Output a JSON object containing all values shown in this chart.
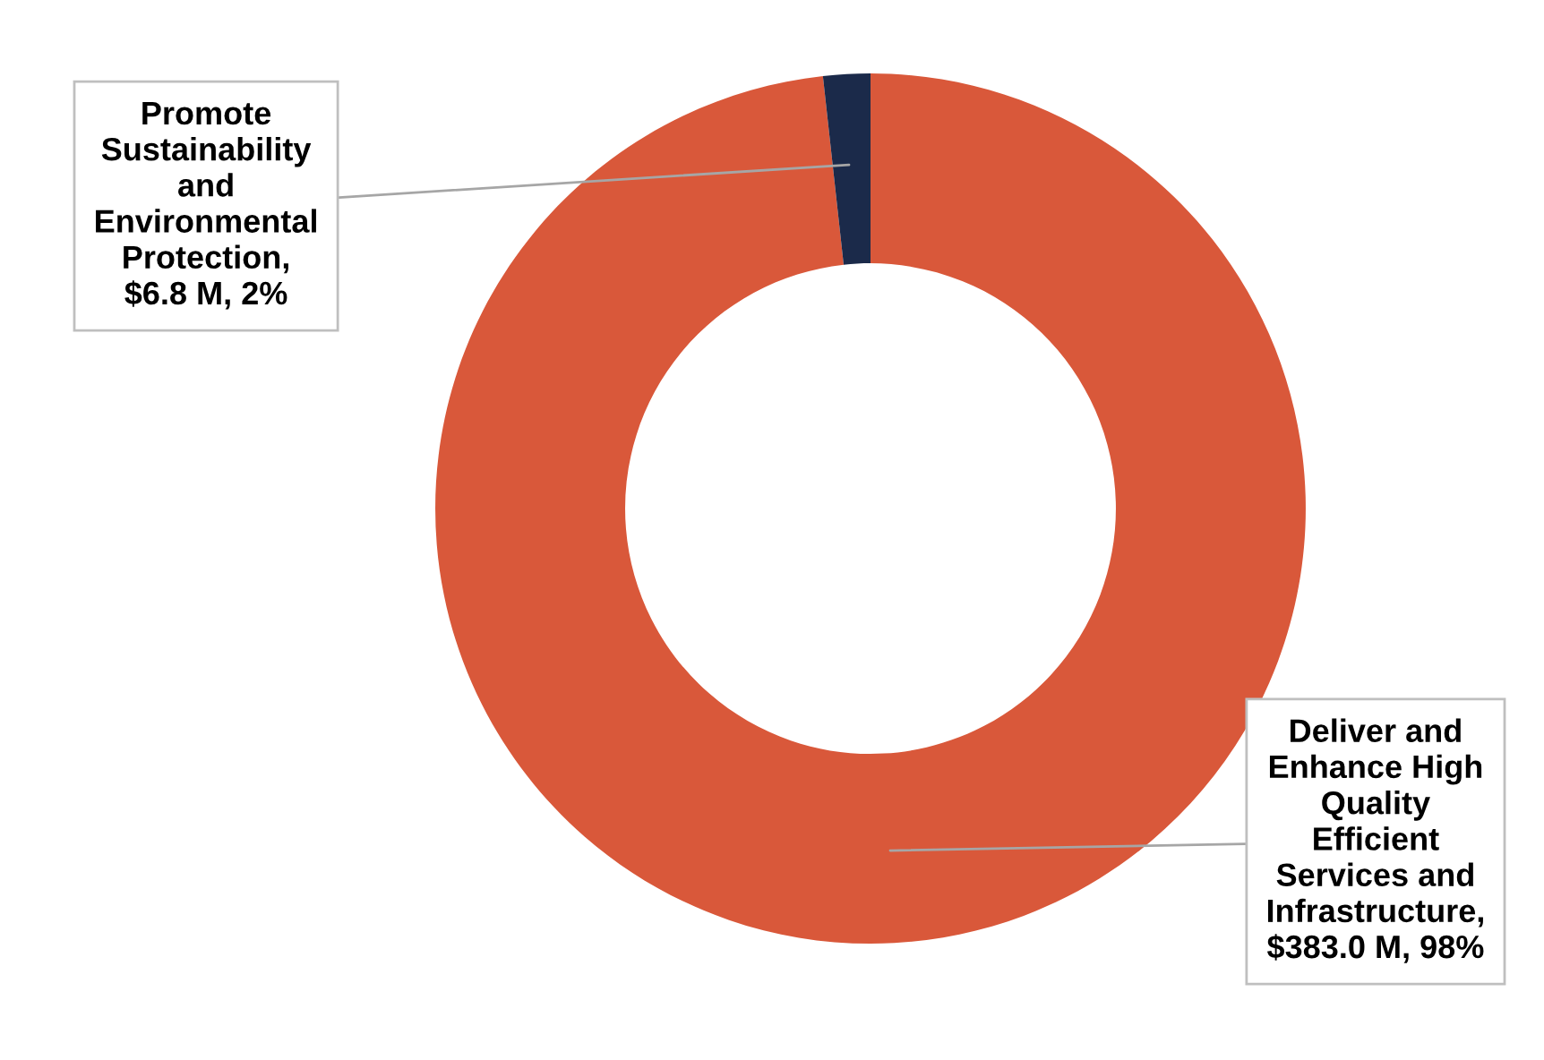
{
  "chart_data": {
    "type": "donut",
    "categories": [
      null,
      null
    ],
    "values": [
      383.0,
      6.8
    ],
    "colors": [
      "#d9583a",
      "#1b2a4a"
    ],
    "value_labels": [
      "Deliver and Enhance High Quality Efficient Services and Infrastructure, $383.0 M, 98%",
      "Promote Sustainability and Environmental Protection, $6.8 M, 2%"
    ]
  }
}
